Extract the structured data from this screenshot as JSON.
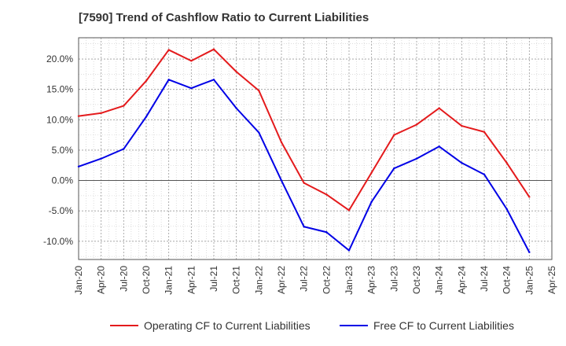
{
  "chart_data": {
    "type": "line",
    "title": "[7590]  Trend of Cashflow Ratio to Current Liabilities",
    "xlabel": "",
    "ylabel": "",
    "x_ticks": [
      "Jan-20",
      "Apr-20",
      "Jul-20",
      "Oct-20",
      "Jan-21",
      "Apr-21",
      "Jul-21",
      "Oct-21",
      "Jan-22",
      "Apr-22",
      "Jul-22",
      "Oct-22",
      "Jan-23",
      "Apr-23",
      "Jul-23",
      "Oct-23",
      "Jan-24",
      "Apr-24",
      "Jul-24",
      "Oct-24",
      "Jan-25",
      "Apr-25"
    ],
    "x": [
      "Jan-20",
      "Apr-20",
      "Jul-20",
      "Oct-20",
      "Jan-21",
      "Apr-21",
      "Jul-21",
      "Oct-21",
      "Jan-22",
      "Apr-22",
      "Jul-22",
      "Oct-22",
      "Jan-23",
      "Apr-23",
      "Jul-23",
      "Oct-23",
      "Jan-24",
      "Apr-24",
      "Jul-24",
      "Oct-24",
      "Jan-25"
    ],
    "y_ticks": [
      20,
      15,
      10,
      5,
      0,
      -5,
      -10
    ],
    "y_tick_labels": [
      "20.0%",
      "15.0%",
      "10.0%",
      "5.0%",
      "0.0%",
      "-5.0%",
      "-10.0%"
    ],
    "ylim": [
      -13,
      23.5
    ],
    "grid": true,
    "legend_position": "bottom",
    "series": [
      {
        "name": "Operating CF to Current Liabilities",
        "color": "#e41a1c",
        "values": [
          10.6,
          11.1,
          12.3,
          16.4,
          21.5,
          19.7,
          21.6,
          17.9,
          14.8,
          6.3,
          -0.4,
          -2.3,
          -4.9,
          1.3,
          7.5,
          9.2,
          11.9,
          9.0,
          8.0,
          2.9,
          -2.7
        ]
      },
      {
        "name": "Free CF to Current Liabilities",
        "color": "#0000e6",
        "values": [
          2.3,
          3.6,
          5.2,
          10.5,
          16.6,
          15.2,
          16.6,
          11.9,
          7.9,
          0.0,
          -7.6,
          -8.5,
          -11.5,
          -3.5,
          2.0,
          3.6,
          5.6,
          2.9,
          1.0,
          -4.7,
          -11.8
        ]
      }
    ]
  }
}
